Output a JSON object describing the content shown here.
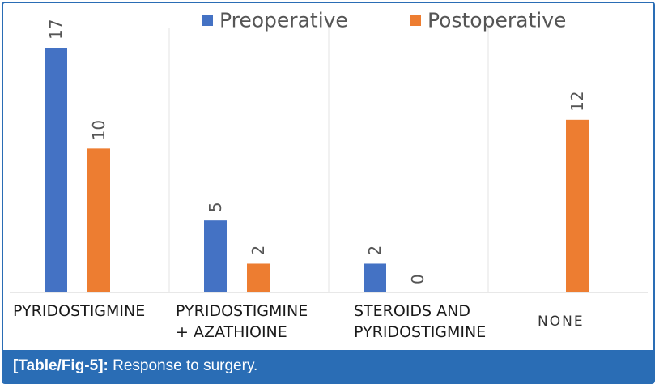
{
  "chart_data": {
    "type": "bar",
    "categories": [
      "PYRIDOSTIGMINE",
      "PYRIDOSTIGMINE\n+ AZATHIOINE",
      "STEROIDS AND\nPYRIDOSTIGMINE",
      "NONE"
    ],
    "series": [
      {
        "name": "Preoperative",
        "values": [
          17,
          5,
          2,
          null
        ],
        "color": "#4472c4"
      },
      {
        "name": "Postoperative",
        "values": [
          10,
          2,
          0,
          12
        ],
        "color": "#ed7d31"
      }
    ],
    "xlabel": "",
    "ylabel": "",
    "ylim": [
      0,
      17
    ],
    "grid": "vertical separators",
    "legend_position": "top"
  },
  "caption": {
    "ref": "[Table/Fig-5]:",
    "text": " Response to surgery."
  }
}
